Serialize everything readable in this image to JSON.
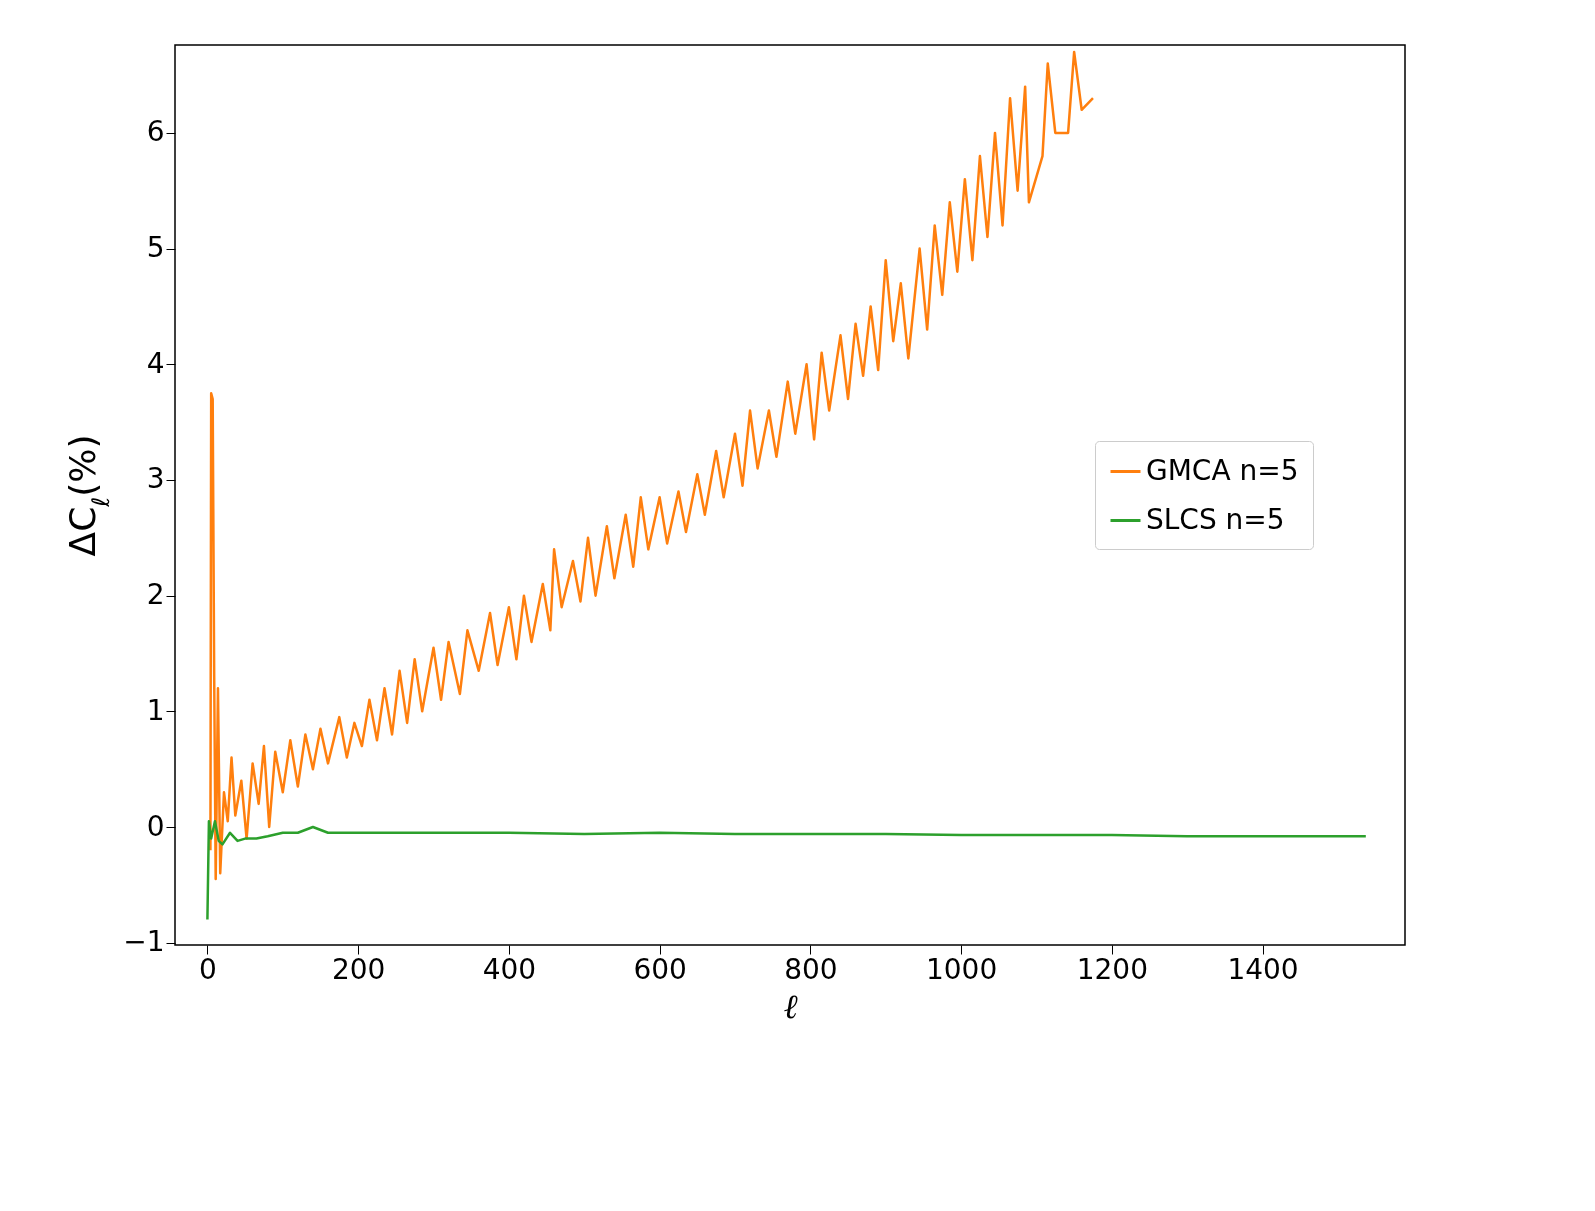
{
  "chart_data": {
    "type": "line",
    "xlabel": "ℓ",
    "ylabel": "ΔC$_{ℓ}$(%)",
    "xlim": [
      -43,
      1589
    ],
    "ylim": [
      -1.02,
      6.76
    ],
    "xticks": [
      0,
      200,
      400,
      600,
      800,
      1000,
      1200,
      1400
    ],
    "yticks": [
      -1,
      0,
      1,
      2,
      3,
      4,
      5,
      6
    ],
    "grid": false,
    "legend": "right",
    "line_style": "solid",
    "series": [
      {
        "name": "GMCA n=5",
        "color": "#ff7f0e",
        "x": [
          4,
          5,
          7,
          9,
          11,
          14,
          17,
          22,
          27,
          32,
          37,
          45,
          52,
          60,
          68,
          75,
          82,
          90,
          100,
          110,
          120,
          130,
          140,
          150,
          160,
          175,
          185,
          195,
          205,
          215,
          225,
          235,
          245,
          255,
          265,
          275,
          285,
          300,
          310,
          320,
          335,
          345,
          360,
          375,
          385,
          400,
          410,
          420,
          430,
          445,
          455,
          460,
          470,
          485,
          495,
          505,
          515,
          530,
          540,
          555,
          565,
          575,
          585,
          600,
          610,
          625,
          635,
          650,
          660,
          675,
          685,
          700,
          710,
          720,
          730,
          745,
          755,
          770,
          780,
          795,
          805,
          815,
          825,
          840,
          850,
          860,
          870,
          880,
          890,
          900,
          910,
          920,
          930,
          945,
          955,
          965,
          975,
          985,
          995,
          1005,
          1015,
          1025,
          1035,
          1045,
          1055,
          1065,
          1075,
          1085,
          1090,
          1108,
          1115,
          1125,
          1142,
          1150,
          1160,
          1175
        ],
        "values": [
          -0.2,
          3.75,
          3.7,
          1.3,
          -0.45,
          1.2,
          -0.4,
          0.3,
          0.05,
          0.6,
          0.1,
          0.4,
          -0.1,
          0.55,
          0.2,
          0.7,
          0.0,
          0.65,
          0.3,
          0.75,
          0.35,
          0.8,
          0.5,
          0.85,
          0.55,
          0.95,
          0.6,
          0.9,
          0.7,
          1.1,
          0.75,
          1.2,
          0.8,
          1.35,
          0.9,
          1.45,
          1.0,
          1.55,
          1.1,
          1.6,
          1.15,
          1.7,
          1.35,
          1.85,
          1.4,
          1.9,
          1.45,
          2.0,
          1.6,
          2.1,
          1.7,
          2.4,
          1.9,
          2.3,
          1.95,
          2.5,
          2.0,
          2.6,
          2.15,
          2.7,
          2.25,
          2.85,
          2.4,
          2.85,
          2.45,
          2.9,
          2.55,
          3.05,
          2.7,
          3.25,
          2.85,
          3.4,
          2.95,
          3.6,
          3.1,
          3.6,
          3.2,
          3.85,
          3.4,
          4.0,
          3.35,
          4.1,
          3.6,
          4.25,
          3.7,
          4.35,
          3.9,
          4.5,
          3.95,
          4.9,
          4.2,
          4.7,
          4.05,
          5.0,
          4.3,
          5.2,
          4.6,
          5.4,
          4.8,
          5.6,
          4.9,
          5.8,
          5.1,
          6.0,
          5.2,
          6.3,
          5.5,
          6.4,
          5.4,
          5.8,
          6.6,
          6.0,
          6.0,
          6.7,
          6.2,
          6.3
        ]
      },
      {
        "name": "SLCS n=5",
        "color": "#2ca02c",
        "x": [
          0,
          2,
          5,
          10,
          15,
          20,
          30,
          40,
          50,
          65,
          80,
          100,
          120,
          140,
          160,
          200,
          300,
          400,
          500,
          600,
          700,
          800,
          900,
          1000,
          1100,
          1200,
          1300,
          1400,
          1500,
          1537
        ],
        "values": [
          -0.8,
          0.05,
          -0.1,
          0.05,
          -0.12,
          -0.15,
          -0.05,
          -0.12,
          -0.1,
          -0.1,
          -0.08,
          -0.05,
          -0.05,
          0.0,
          -0.05,
          -0.05,
          -0.05,
          -0.05,
          -0.06,
          -0.05,
          -0.06,
          -0.06,
          -0.06,
          -0.07,
          -0.07,
          -0.07,
          -0.08,
          -0.08,
          -0.08,
          -0.08
        ]
      }
    ]
  }
}
